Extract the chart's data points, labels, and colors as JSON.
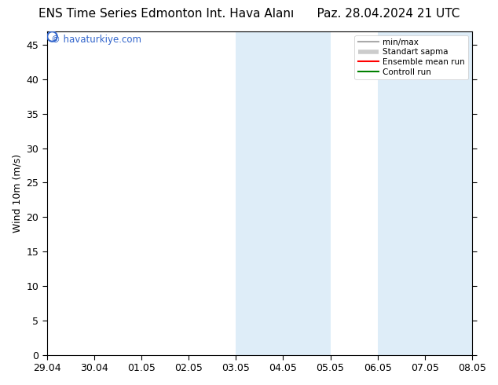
{
  "title_left": "ENS Time Series Edmonton Int. Hava Alanı",
  "title_right": "Paz. 28.04.2024 21 UTC",
  "ylabel": "Wind 10m (m/s)",
  "watermark": "© havaturkiye.com",
  "x_tick_labels": [
    "29.04",
    "30.04",
    "01.05",
    "02.05",
    "03.05",
    "04.05",
    "05.05",
    "06.05",
    "07.05",
    "08.05"
  ],
  "x_tick_positions": [
    0,
    1,
    2,
    3,
    4,
    5,
    6,
    7,
    8,
    9
  ],
  "ylim": [
    0,
    47
  ],
  "yticks": [
    0,
    5,
    10,
    15,
    20,
    25,
    30,
    35,
    40,
    45
  ],
  "shaded_bands": [
    {
      "x_start": 4,
      "x_end": 5,
      "color": "#deedf8"
    },
    {
      "x_start": 5,
      "x_end": 6,
      "color": "#deedf8"
    },
    {
      "x_start": 7,
      "x_end": 8,
      "color": "#deedf8"
    },
    {
      "x_start": 8,
      "x_end": 9,
      "color": "#deedf8"
    }
  ],
  "background_color": "#ffffff",
  "plot_bg_color": "#ffffff",
  "title_fontsize": 11,
  "axis_fontsize": 9,
  "watermark_color": "#3366cc",
  "legend_right_align": true
}
